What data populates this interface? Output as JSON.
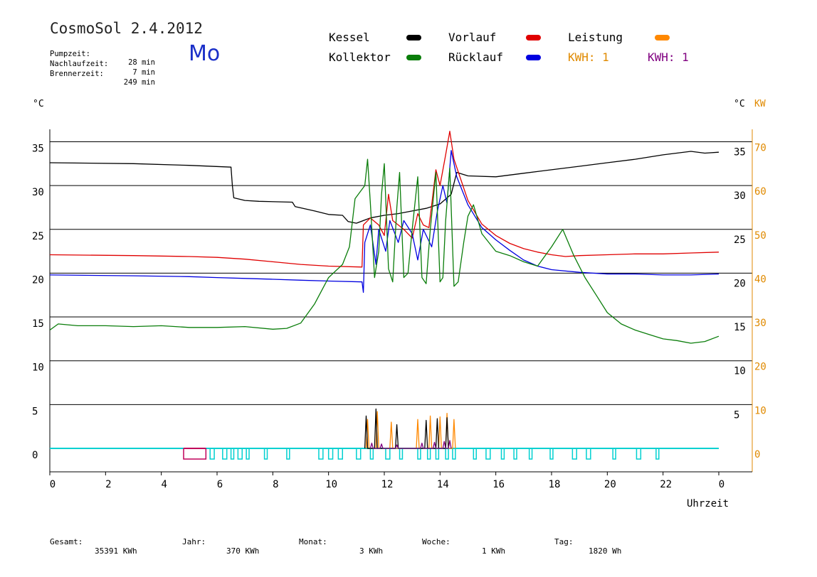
{
  "header": {
    "app_title": "CosmoSol 2.4.2012",
    "pump_label": "Pumpzeit:",
    "pump_value": "28 min",
    "after_label": "Nachlaufzeit:",
    "after_value": "7 min",
    "burner_label": "Brennerzeit:",
    "burner_value": "249 min",
    "day": "Mo"
  },
  "legend": {
    "items": [
      {
        "label": "Kessel",
        "color": "#000000"
      },
      {
        "label": "Kollektor",
        "color": "#0a7d0a"
      },
      {
        "label": "Vorlauf",
        "color": "#e00000"
      },
      {
        "label": "Rücklauf",
        "color": "#0000e0"
      },
      {
        "label": "Leistung",
        "color": "#ff8800"
      }
    ],
    "kwh_orange": "KWH: 1",
    "kwh_purple": "KWH: 1",
    "kwh_orange_color": "#e08a00",
    "kwh_purple_color": "#800080"
  },
  "units": {
    "left": "°C",
    "right_c": "°C",
    "right_kw": "KW"
  },
  "footer": {
    "total_label": "Gesamt:",
    "total_value": "35391 KWh",
    "year_label": "Jahr:",
    "year_value": "370 KWh",
    "month_label": "Monat:",
    "month_value": "3 KWh",
    "week_label": "Woche:",
    "week_value": "1 KWh",
    "day_label": "Tag:",
    "day_value": "1820 Wh"
  },
  "chart_data": {
    "type": "line",
    "xlabel": "Uhrzeit",
    "x_ticks": [
      "0",
      "2",
      "4",
      "6",
      "8",
      "10",
      "12",
      "14",
      "16",
      "18",
      "20",
      "22",
      "0"
    ],
    "xlim": [
      0,
      24
    ],
    "ylim": [
      -2,
      37
    ],
    "y_ticks_left": [
      "0",
      "5",
      "10",
      "15",
      "20",
      "25",
      "30",
      "35"
    ],
    "y_ticks_right_c": [
      "5",
      "10",
      "15",
      "20",
      "25",
      "30",
      "35"
    ],
    "y_ticks_right_kw": [
      "0",
      "10",
      "20",
      "30",
      "40",
      "50",
      "60",
      "70"
    ],
    "grid": "horizontal",
    "series": [
      {
        "name": "Kessel",
        "color": "#000000",
        "points": [
          [
            0,
            32.6
          ],
          [
            3,
            32.5
          ],
          [
            5,
            32.3
          ],
          [
            6.5,
            32.1
          ],
          [
            6.55,
            30
          ],
          [
            6.6,
            28.6
          ],
          [
            7,
            28.3
          ],
          [
            7.5,
            28.2
          ],
          [
            8.7,
            28.1
          ],
          [
            8.8,
            27.6
          ],
          [
            9.5,
            27.1
          ],
          [
            10,
            26.7
          ],
          [
            10.5,
            26.6
          ],
          [
            10.7,
            25.9
          ],
          [
            11,
            25.7
          ],
          [
            11.5,
            26.3
          ],
          [
            12,
            26.6
          ],
          [
            12.5,
            26.8
          ],
          [
            13,
            27.1
          ],
          [
            13.5,
            27.4
          ],
          [
            14,
            27.9
          ],
          [
            14.4,
            29
          ],
          [
            14.6,
            31.5
          ],
          [
            15,
            31.1
          ],
          [
            16,
            31.0
          ],
          [
            17,
            31.4
          ],
          [
            18,
            31.8
          ],
          [
            19,
            32.2
          ],
          [
            20,
            32.6
          ],
          [
            21,
            33.0
          ],
          [
            22,
            33.5
          ],
          [
            23,
            33.9
          ],
          [
            23.5,
            33.7
          ],
          [
            24,
            33.8
          ]
        ]
      },
      {
        "name": "Vorlauf",
        "color": "#e00000",
        "points": [
          [
            0,
            22.1
          ],
          [
            3,
            22.0
          ],
          [
            5,
            21.9
          ],
          [
            6,
            21.8
          ],
          [
            7,
            21.6
          ],
          [
            8,
            21.3
          ],
          [
            9,
            21.0
          ],
          [
            10,
            20.8
          ],
          [
            11.2,
            20.7
          ],
          [
            11.25,
            25.5
          ],
          [
            11.5,
            26.3
          ],
          [
            11.8,
            25.5
          ],
          [
            12.0,
            24.3
          ],
          [
            12.15,
            29.0
          ],
          [
            12.3,
            26.0
          ],
          [
            12.7,
            25.0
          ],
          [
            13.0,
            24.0
          ],
          [
            13.2,
            26.8
          ],
          [
            13.4,
            25.5
          ],
          [
            13.6,
            25.2
          ],
          [
            13.85,
            31.8
          ],
          [
            14.0,
            30.0
          ],
          [
            14.2,
            33.5
          ],
          [
            14.35,
            36.2
          ],
          [
            14.5,
            33.0
          ],
          [
            15,
            28.3
          ],
          [
            15.5,
            25.6
          ],
          [
            16,
            24.3
          ],
          [
            16.5,
            23.4
          ],
          [
            17,
            22.8
          ],
          [
            17.5,
            22.4
          ],
          [
            18,
            22.1
          ],
          [
            18.5,
            21.9
          ],
          [
            19,
            22.0
          ],
          [
            20,
            22.1
          ],
          [
            21,
            22.2
          ],
          [
            22,
            22.2
          ],
          [
            23,
            22.3
          ],
          [
            24,
            22.4
          ]
        ]
      },
      {
        "name": "Rücklauf",
        "color": "#0000e0",
        "points": [
          [
            0,
            19.8
          ],
          [
            3,
            19.7
          ],
          [
            5,
            19.6
          ],
          [
            6,
            19.5
          ],
          [
            7,
            19.4
          ],
          [
            8,
            19.3
          ],
          [
            9,
            19.2
          ],
          [
            10,
            19.1
          ],
          [
            11.2,
            19.0
          ],
          [
            11.25,
            17.8
          ],
          [
            11.3,
            23.5
          ],
          [
            11.5,
            25.5
          ],
          [
            11.7,
            21.0
          ],
          [
            11.8,
            25.0
          ],
          [
            12.05,
            22.5
          ],
          [
            12.2,
            26.0
          ],
          [
            12.5,
            23.5
          ],
          [
            12.7,
            26.0
          ],
          [
            13.0,
            24.5
          ],
          [
            13.2,
            21.5
          ],
          [
            13.4,
            25.0
          ],
          [
            13.7,
            23.0
          ],
          [
            13.9,
            27.0
          ],
          [
            14.1,
            30.0
          ],
          [
            14.25,
            28.0
          ],
          [
            14.4,
            34.0
          ],
          [
            14.6,
            31.0
          ],
          [
            15,
            27.8
          ],
          [
            15.5,
            25.2
          ],
          [
            16,
            23.8
          ],
          [
            16.5,
            22.6
          ],
          [
            17,
            21.5
          ],
          [
            17.5,
            20.8
          ],
          [
            18,
            20.4
          ],
          [
            19,
            20.1
          ],
          [
            20,
            19.9
          ],
          [
            21,
            19.9
          ],
          [
            22,
            19.8
          ],
          [
            23,
            19.8
          ],
          [
            24,
            19.9
          ]
        ]
      },
      {
        "name": "Kollektor",
        "color": "#0a7d0a",
        "points": [
          [
            0,
            13.5
          ],
          [
            0.3,
            14.2
          ],
          [
            1,
            14.0
          ],
          [
            2,
            14.0
          ],
          [
            3,
            13.9
          ],
          [
            4,
            14.0
          ],
          [
            5,
            13.8
          ],
          [
            6,
            13.8
          ],
          [
            7,
            13.9
          ],
          [
            8,
            13.6
          ],
          [
            8.5,
            13.7
          ],
          [
            9,
            14.3
          ],
          [
            9.5,
            16.5
          ],
          [
            10,
            19.5
          ],
          [
            10.5,
            21.0
          ],
          [
            10.75,
            23.0
          ],
          [
            10.95,
            28.5
          ],
          [
            11.3,
            30.0
          ],
          [
            11.4,
            33.0
          ],
          [
            11.5,
            28.0
          ],
          [
            11.65,
            19.5
          ],
          [
            11.8,
            22.5
          ],
          [
            11.9,
            29.0
          ],
          [
            12.0,
            32.5
          ],
          [
            12.15,
            20.5
          ],
          [
            12.3,
            19.0
          ],
          [
            12.45,
            27.5
          ],
          [
            12.55,
            31.5
          ],
          [
            12.7,
            19.5
          ],
          [
            12.85,
            20.0
          ],
          [
            13.0,
            25.0
          ],
          [
            13.2,
            31.0
          ],
          [
            13.35,
            19.5
          ],
          [
            13.5,
            18.8
          ],
          [
            13.65,
            25.0
          ],
          [
            13.85,
            31.5
          ],
          [
            14.0,
            19.0
          ],
          [
            14.1,
            19.5
          ],
          [
            14.2,
            26.0
          ],
          [
            14.35,
            32.0
          ],
          [
            14.5,
            18.5
          ],
          [
            14.65,
            19.0
          ],
          [
            14.85,
            23.5
          ],
          [
            15,
            26.5
          ],
          [
            15.2,
            27.8
          ],
          [
            15.5,
            24.5
          ],
          [
            16,
            22.5
          ],
          [
            16.5,
            22.0
          ],
          [
            17,
            21.3
          ],
          [
            17.5,
            20.8
          ],
          [
            18,
            23.0
          ],
          [
            18.4,
            25.0
          ],
          [
            18.8,
            22.0
          ],
          [
            19.2,
            19.5
          ],
          [
            19.6,
            17.5
          ],
          [
            20,
            15.5
          ],
          [
            20.5,
            14.2
          ],
          [
            21,
            13.5
          ],
          [
            21.5,
            13.0
          ],
          [
            22,
            12.5
          ],
          [
            22.5,
            12.3
          ],
          [
            23,
            12.0
          ],
          [
            23.5,
            12.2
          ],
          [
            24,
            12.8
          ]
        ]
      },
      {
        "name": "Leistung",
        "color": "#ff8800",
        "points": [
          [
            11.35,
            0
          ],
          [
            11.4,
            3.3
          ],
          [
            11.45,
            0
          ],
          [
            11.7,
            0
          ],
          [
            11.75,
            4.2
          ],
          [
            11.8,
            0
          ],
          [
            12.2,
            0
          ],
          [
            12.25,
            3.0
          ],
          [
            12.3,
            0
          ],
          [
            13.15,
            0
          ],
          [
            13.2,
            3.3
          ],
          [
            13.25,
            0
          ],
          [
            13.6,
            0
          ],
          [
            13.65,
            3.7
          ],
          [
            13.7,
            0
          ],
          [
            13.95,
            0
          ],
          [
            14.0,
            3.6
          ],
          [
            14.05,
            0
          ],
          [
            14.2,
            0
          ],
          [
            14.25,
            4.0
          ],
          [
            14.3,
            0
          ],
          [
            14.45,
            0
          ],
          [
            14.5,
            3.3
          ],
          [
            14.55,
            0
          ]
        ]
      },
      {
        "name": "",
        "color": "#000000",
        "points": [
          [
            11.3,
            0
          ],
          [
            11.35,
            3.7
          ],
          [
            11.4,
            0
          ],
          [
            11.65,
            0
          ],
          [
            11.7,
            4.5
          ],
          [
            11.75,
            0
          ],
          [
            12.4,
            0
          ],
          [
            12.45,
            2.7
          ],
          [
            12.5,
            0
          ],
          [
            13.45,
            0
          ],
          [
            13.5,
            3.2
          ],
          [
            13.55,
            0
          ],
          [
            13.85,
            0
          ],
          [
            13.9,
            3.4
          ],
          [
            13.95,
            0
          ],
          [
            14.2,
            0
          ],
          [
            14.25,
            3.5
          ],
          [
            14.3,
            0
          ]
        ]
      },
      {
        "name": "",
        "color": "#800080",
        "points": [
          [
            11.5,
            0
          ],
          [
            11.55,
            0.6
          ],
          [
            11.6,
            0
          ],
          [
            11.85,
            0
          ],
          [
            11.9,
            0.5
          ],
          [
            11.95,
            0
          ],
          [
            12.4,
            0
          ],
          [
            12.45,
            0.4
          ],
          [
            12.5,
            0
          ],
          [
            13.3,
            0
          ],
          [
            13.35,
            0.6
          ],
          [
            13.4,
            0
          ],
          [
            13.75,
            0
          ],
          [
            13.8,
            0.7
          ],
          [
            13.85,
            0
          ],
          [
            14.1,
            0
          ],
          [
            14.15,
            0.8
          ],
          [
            14.2,
            0
          ],
          [
            14.3,
            0
          ],
          [
            14.35,
            0.9
          ],
          [
            14.4,
            0
          ]
        ]
      }
    ],
    "pump_on": {
      "name": "",
      "color": "#00d0d0",
      "periods": [
        [
          4.8,
          5.6
        ],
        [
          5.75,
          5.9
        ],
        [
          6.2,
          6.35
        ],
        [
          6.5,
          6.6
        ],
        [
          6.75,
          6.9
        ],
        [
          7.05,
          7.15
        ],
        [
          7.7,
          7.8
        ],
        [
          8.5,
          8.6
        ],
        [
          9.65,
          9.8
        ],
        [
          10.0,
          10.15
        ],
        [
          10.35,
          10.5
        ],
        [
          11.0,
          11.15
        ],
        [
          11.5,
          11.6
        ],
        [
          12.05,
          12.2
        ],
        [
          12.55,
          12.65
        ],
        [
          13.2,
          13.3
        ],
        [
          13.55,
          13.65
        ],
        [
          13.85,
          13.95
        ],
        [
          14.2,
          14.3
        ],
        [
          14.45,
          14.55
        ],
        [
          15.2,
          15.3
        ],
        [
          15.65,
          15.8
        ],
        [
          16.2,
          16.3
        ],
        [
          16.65,
          16.75
        ],
        [
          17.2,
          17.3
        ],
        [
          17.95,
          18.05
        ],
        [
          18.75,
          18.9
        ],
        [
          19.25,
          19.4
        ],
        [
          20.2,
          20.3
        ],
        [
          21.05,
          21.2
        ],
        [
          21.75,
          21.85
        ]
      ],
      "first_period_color": "#c0005a"
    }
  }
}
